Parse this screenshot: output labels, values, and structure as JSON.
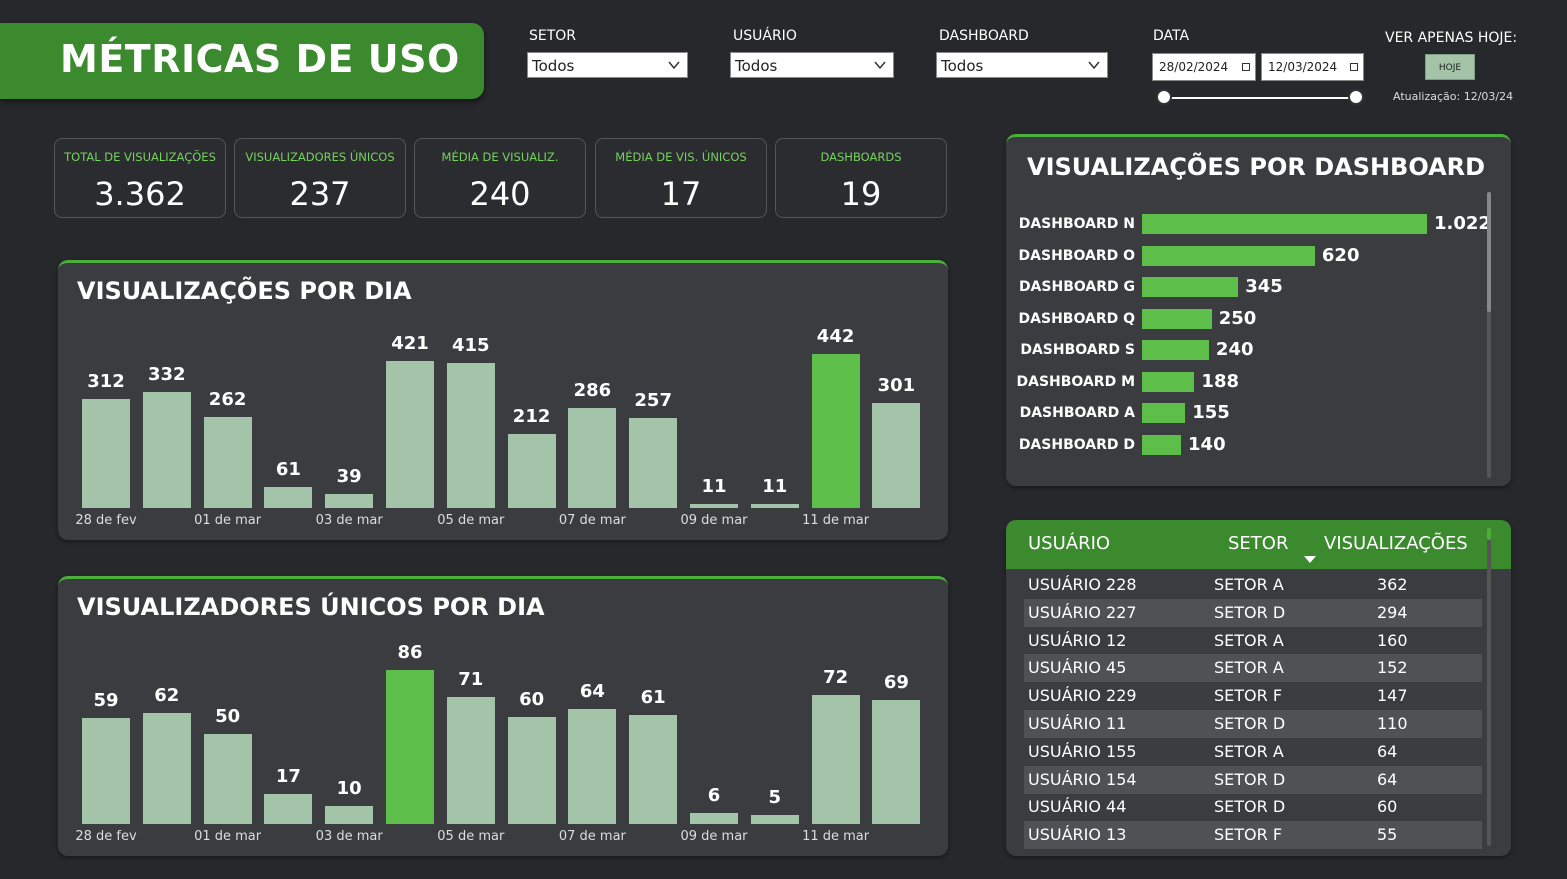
{
  "header": {
    "title": "MÉTRICAS DE USO"
  },
  "filters": {
    "setor": {
      "label": "SETOR",
      "value": "Todos"
    },
    "usuario": {
      "label": "USUÁRIO",
      "value": "Todos"
    },
    "dashboard": {
      "label": "DASHBOARD",
      "value": "Todos"
    },
    "data": {
      "label": "DATA",
      "start": "28/02/2024",
      "end": "12/03/2024"
    },
    "hoje": {
      "label": "VER APENAS HOJE:",
      "button": "HOJE",
      "updated": "Atualização: 12/03/24"
    }
  },
  "kpis": [
    {
      "label": "TOTAL DE VISUALIZAÇÕES",
      "value": "3.362"
    },
    {
      "label": "VISUALIZADORES ÚNICOS",
      "value": "237"
    },
    {
      "label": "MÉDIA DE VISUALIZ.",
      "value": "240"
    },
    {
      "label": "MÉDIA DE VIS. ÚNICOS",
      "value": "17"
    },
    {
      "label": "DASHBOARDS",
      "value": "19"
    }
  ],
  "colors": {
    "bar": "#a3c4a8",
    "highlight": "#5dbf49",
    "accent": "#3b8a2e"
  },
  "chart_data": [
    {
      "type": "bar",
      "title": "VISUALIZAÇÕES POR DIA",
      "x_tick_labels": [
        "28 de fev",
        "",
        "01 de mar",
        "",
        "03 de mar",
        "",
        "05 de mar",
        "",
        "07 de mar",
        "",
        "09 de mar",
        "",
        "11 de mar",
        ""
      ],
      "values": [
        312,
        332,
        262,
        61,
        39,
        421,
        415,
        212,
        286,
        257,
        11,
        11,
        442,
        301
      ],
      "labels": [
        "312",
        "332",
        "262",
        "61",
        "39",
        "421",
        "415",
        "212",
        "286",
        "257",
        "11",
        "11",
        "442",
        "301"
      ],
      "highlight_index": 12,
      "ylim": [
        0,
        442
      ]
    },
    {
      "type": "bar",
      "title": "VISUALIZADORES ÚNICOS POR DIA",
      "x_tick_labels": [
        "28 de fev",
        "",
        "01 de mar",
        "",
        "03 de mar",
        "",
        "05 de mar",
        "",
        "07 de mar",
        "",
        "09 de mar",
        "",
        "11 de mar",
        ""
      ],
      "values": [
        59,
        62,
        50,
        17,
        10,
        86,
        71,
        60,
        64,
        61,
        6,
        5,
        72,
        69
      ],
      "labels": [
        "59",
        "62",
        "50",
        "17",
        "10",
        "86",
        "71",
        "60",
        "64",
        "61",
        "6",
        "5",
        "72",
        "69"
      ],
      "highlight_index": 5,
      "ylim": [
        0,
        86
      ]
    },
    {
      "type": "bar",
      "orientation": "horizontal",
      "title": "VISUALIZAÇÕES POR DASHBOARD",
      "categories": [
        "DASHBOARD N",
        "DASHBOARD O",
        "DASHBOARD G",
        "DASHBOARD Q",
        "DASHBOARD S",
        "DASHBOARD M",
        "DASHBOARD A",
        "DASHBOARD D"
      ],
      "values": [
        1022,
        620,
        345,
        250,
        240,
        188,
        155,
        140
      ],
      "labels": [
        "1.022",
        "620",
        "345",
        "250",
        "240",
        "188",
        "155",
        "140"
      ],
      "xlim": [
        0,
        1022
      ]
    }
  ],
  "table": {
    "columns": [
      "USUÁRIO",
      "SETOR",
      "VISUALIZAÇÕES"
    ],
    "rows": [
      [
        "USUÁRIO 228",
        "SETOR A",
        "362"
      ],
      [
        "USUÁRIO 227",
        "SETOR D",
        "294"
      ],
      [
        "USUÁRIO 12",
        "SETOR A",
        "160"
      ],
      [
        "USUÁRIO 45",
        "SETOR A",
        "152"
      ],
      [
        "USUÁRIO 229",
        "SETOR F",
        "147"
      ],
      [
        "USUÁRIO 11",
        "SETOR D",
        "110"
      ],
      [
        "USUÁRIO 155",
        "SETOR A",
        "64"
      ],
      [
        "USUÁRIO 154",
        "SETOR D",
        "64"
      ],
      [
        "USUÁRIO 44",
        "SETOR D",
        "60"
      ],
      [
        "USUÁRIO 13",
        "SETOR F",
        "55"
      ]
    ]
  }
}
